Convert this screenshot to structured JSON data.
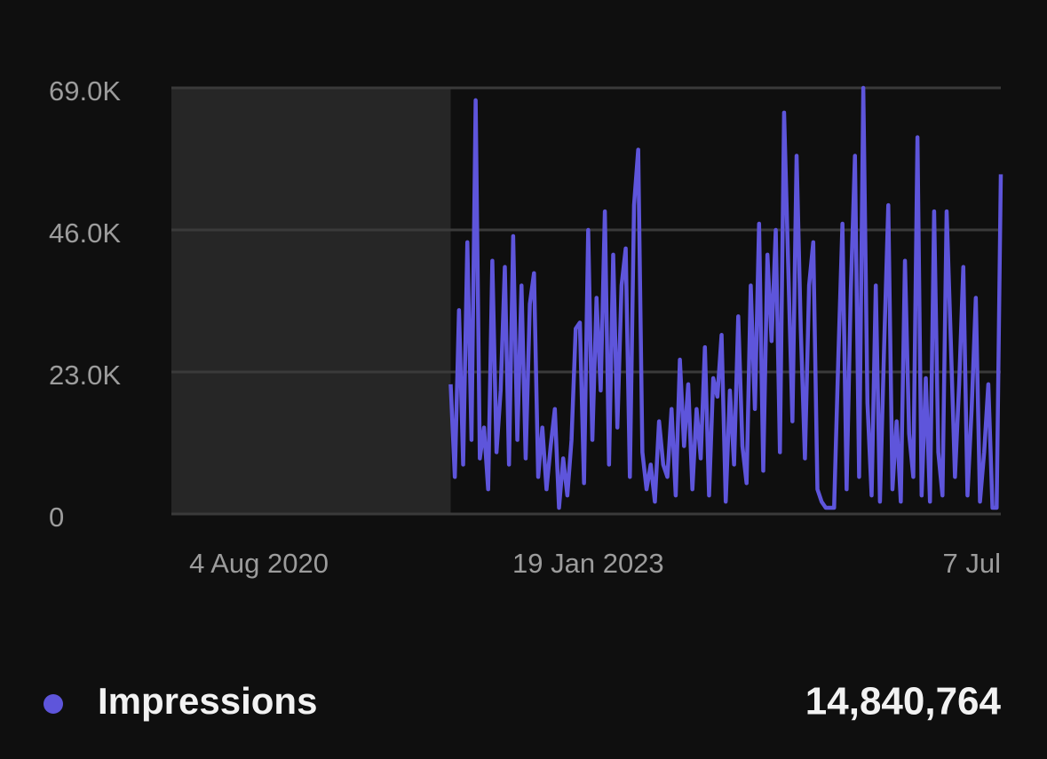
{
  "chart_data": {
    "type": "line",
    "categories": [
      null,
      null,
      null,
      null,
      null,
      null,
      null,
      null,
      null,
      null,
      null,
      null,
      null,
      null,
      null,
      null,
      null,
      null,
      null,
      null,
      null,
      "4 Aug 2020",
      null,
      null,
      null,
      null,
      null,
      null,
      null,
      null,
      null,
      null,
      null,
      null,
      null,
      null,
      null,
      null,
      null,
      null,
      null,
      null,
      null,
      null,
      null,
      null,
      null,
      null,
      null,
      null,
      null,
      null,
      null,
      null,
      null,
      null,
      null,
      null,
      null,
      null,
      null,
      null,
      null,
      null,
      null,
      null,
      null,
      null,
      null,
      null,
      null,
      null,
      null,
      null,
      null,
      null,
      null,
      null,
      null,
      null,
      null,
      null,
      null,
      null,
      null,
      null,
      null,
      null,
      null,
      null,
      null,
      null,
      null,
      null,
      null,
      null,
      null,
      null,
      null,
      null,
      "19 Jan 2023",
      null,
      null,
      null,
      null,
      null,
      null,
      null,
      null,
      null,
      null,
      null,
      null,
      null,
      null,
      null,
      null,
      null,
      null,
      null,
      null,
      null,
      null,
      null,
      null,
      null,
      null,
      null,
      null,
      null,
      null,
      null,
      null,
      null,
      null,
      null,
      null,
      null,
      null,
      null,
      null,
      null,
      null,
      null,
      null,
      null,
      null,
      null,
      null,
      null,
      null,
      null,
      null,
      null,
      null,
      null,
      null,
      null,
      null,
      null,
      null,
      null,
      null,
      null,
      null,
      null,
      null,
      null,
      null,
      null,
      null,
      null,
      null,
      null,
      null,
      null,
      null,
      null,
      null,
      null,
      null,
      null,
      null,
      null,
      null,
      null,
      null,
      null,
      null,
      null,
      null,
      null,
      null,
      null,
      null,
      null,
      null,
      null,
      null,
      "7 Jul"
    ],
    "series": [
      {
        "name": "Impressions",
        "color": "#5e55db",
        "values": [
          null,
          null,
          null,
          null,
          null,
          null,
          null,
          null,
          null,
          null,
          null,
          null,
          null,
          null,
          null,
          null,
          null,
          null,
          null,
          null,
          null,
          null,
          null,
          null,
          null,
          null,
          null,
          null,
          null,
          null,
          null,
          null,
          null,
          null,
          null,
          null,
          null,
          null,
          null,
          null,
          null,
          null,
          null,
          null,
          null,
          null,
          null,
          null,
          null,
          null,
          null,
          null,
          null,
          null,
          null,
          null,
          null,
          null,
          null,
          null,
          null,
          null,
          null,
          null,
          null,
          null,
          null,
          21000,
          6000,
          33000,
          8000,
          44000,
          12000,
          67000,
          9000,
          14000,
          4000,
          41000,
          10000,
          20000,
          40000,
          8000,
          45000,
          12000,
          37000,
          9000,
          34000,
          39000,
          6000,
          14000,
          4000,
          11000,
          17000,
          1000,
          9000,
          3000,
          12000,
          30000,
          31000,
          5000,
          46000,
          12000,
          35000,
          20000,
          49000,
          8000,
          42000,
          14000,
          37000,
          43000,
          6000,
          50000,
          59000,
          10000,
          4000,
          8000,
          2000,
          15000,
          8000,
          6000,
          17000,
          3000,
          25000,
          11000,
          21000,
          4000,
          17000,
          9000,
          27000,
          3000,
          22000,
          19000,
          29000,
          2000,
          20000,
          8000,
          32000,
          11000,
          5000,
          37000,
          17000,
          47000,
          7000,
          42000,
          28000,
          46000,
          10000,
          65000,
          40000,
          15000,
          58000,
          30000,
          9000,
          37000,
          44000,
          4000,
          2000,
          1000,
          1000,
          1000,
          25000,
          47000,
          4000,
          36000,
          58000,
          6000,
          69000,
          18000,
          3000,
          37000,
          2000,
          27000,
          50000,
          4000,
          15000,
          2000,
          41000,
          13000,
          6000,
          61000,
          3000,
          22000,
          2000,
          49000,
          10000,
          3000,
          49000,
          28000,
          6000,
          21000,
          40000,
          3000,
          17000,
          35000,
          2000,
          10000,
          21000,
          1000,
          1000,
          55000
        ]
      }
    ],
    "total": {
      "value": 14840764,
      "label": "14,840,764"
    },
    "ylim": [
      0,
      69000
    ],
    "yticks": [
      0,
      {
        "value": 23000,
        "label": "23.0K"
      },
      {
        "value": 46000,
        "label": "46.0K"
      },
      {
        "value": 69000,
        "label": "69.0K"
      }
    ],
    "grid": true
  }
}
